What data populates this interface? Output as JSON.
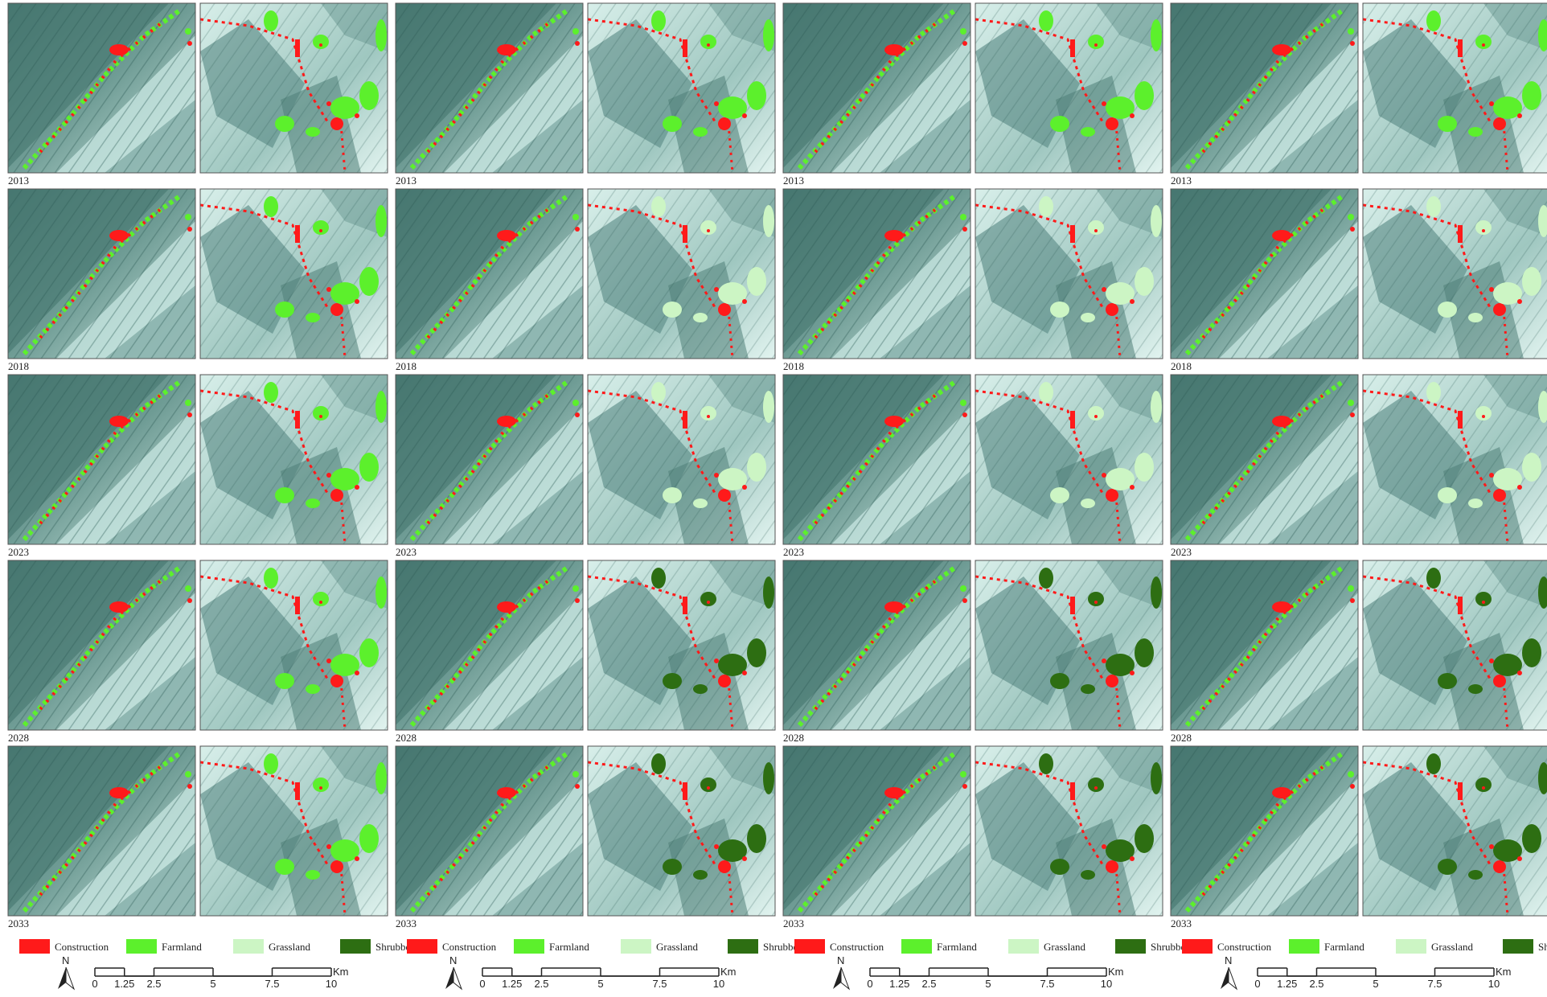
{
  "figure": {
    "years": [
      "2013",
      "2018",
      "2023",
      "2028",
      "2033"
    ],
    "legend": [
      {
        "name": "Construction",
        "color": "#ff1a1a"
      },
      {
        "name": "Farmland",
        "color": "#5cf02c"
      },
      {
        "name": "Grassland",
        "color": "#ccf5c4"
      },
      {
        "name": "Shrubbery",
        "color": "#2d6e12"
      }
    ],
    "north": "N",
    "scale": {
      "ticks": [
        0,
        1.25,
        2.5,
        5,
        7.5,
        10
      ],
      "unit": "Km"
    }
  }
}
